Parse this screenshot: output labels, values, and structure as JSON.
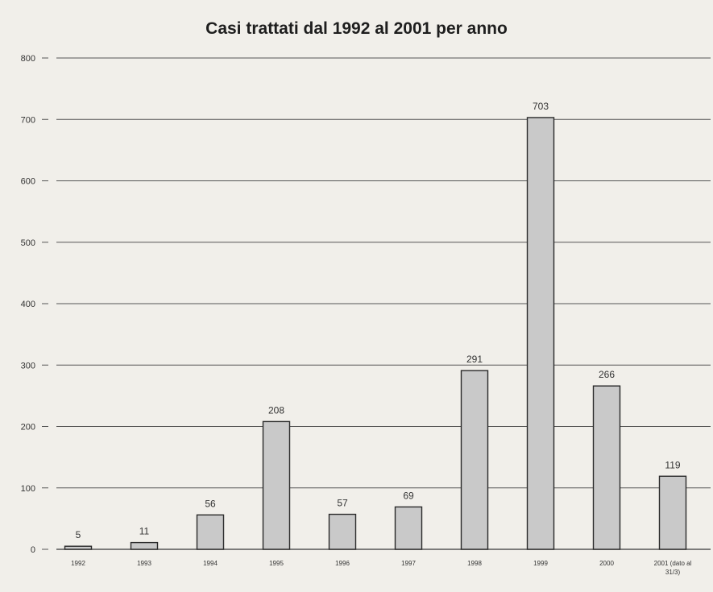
{
  "chart_data": {
    "type": "bar",
    "title": "Casi trattati dal 1992 al 2001 per anno",
    "xlabel": "",
    "ylabel": "",
    "categories": [
      "1992",
      "1993",
      "1994",
      "1995",
      "1996",
      "1997",
      "1998",
      "1999",
      "2000",
      "2001 (dato al 31/3)"
    ],
    "values": [
      5,
      11,
      56,
      208,
      57,
      69,
      291,
      703,
      266,
      119
    ],
    "data_labels": [
      "5",
      "11",
      "56",
      "208",
      "57",
      "69",
      "291",
      "703",
      "266",
      "119"
    ],
    "ylim": [
      0,
      800
    ],
    "yticks": [
      0,
      100,
      200,
      300,
      400,
      500,
      600,
      700,
      800
    ],
    "grid": true,
    "legend": "none",
    "colors": {
      "background": "#f1efea",
      "bar_fill": "#c9c9c9",
      "bar_stroke": "#2a2a2a",
      "grid": "#555555"
    }
  }
}
